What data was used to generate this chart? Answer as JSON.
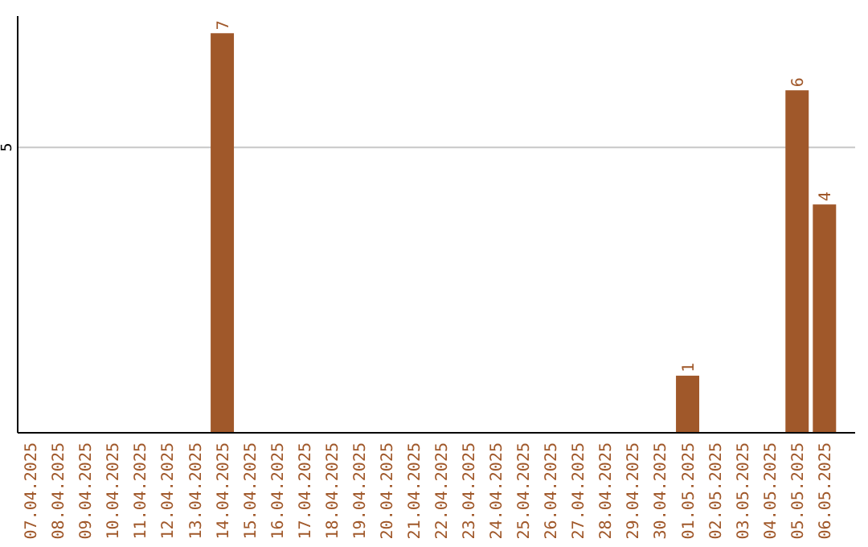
{
  "chart_data": {
    "type": "bar",
    "categories": [
      "07.04.2025",
      "08.04.2025",
      "09.04.2025",
      "10.04.2025",
      "11.04.2025",
      "12.04.2025",
      "13.04.2025",
      "14.04.2025",
      "15.04.2025",
      "16.04.2025",
      "17.04.2025",
      "18.04.2025",
      "19.04.2025",
      "20.04.2025",
      "21.04.2025",
      "22.04.2025",
      "23.04.2025",
      "24.04.2025",
      "25.04.2025",
      "26.04.2025",
      "27.04.2025",
      "28.04.2025",
      "29.04.2025",
      "30.04.2025",
      "01.05.2025",
      "02.05.2025",
      "03.05.2025",
      "04.05.2025",
      "05.05.2025",
      "06.05.2025"
    ],
    "values": [
      0,
      0,
      0,
      0,
      0,
      0,
      0,
      7,
      0,
      0,
      0,
      0,
      0,
      0,
      0,
      0,
      0,
      0,
      0,
      0,
      0,
      0,
      0,
      0,
      1,
      0,
      0,
      0,
      6,
      4
    ],
    "value_labels": [
      null,
      null,
      null,
      null,
      null,
      null,
      null,
      "7",
      null,
      null,
      null,
      null,
      null,
      null,
      null,
      null,
      null,
      null,
      null,
      null,
      null,
      null,
      null,
      null,
      "1",
      null,
      null,
      null,
      "6",
      "4"
    ],
    "color": "#a0582a",
    "ylim": [
      0,
      7.3
    ],
    "yticks": [
      5
    ],
    "grid": "y"
  }
}
